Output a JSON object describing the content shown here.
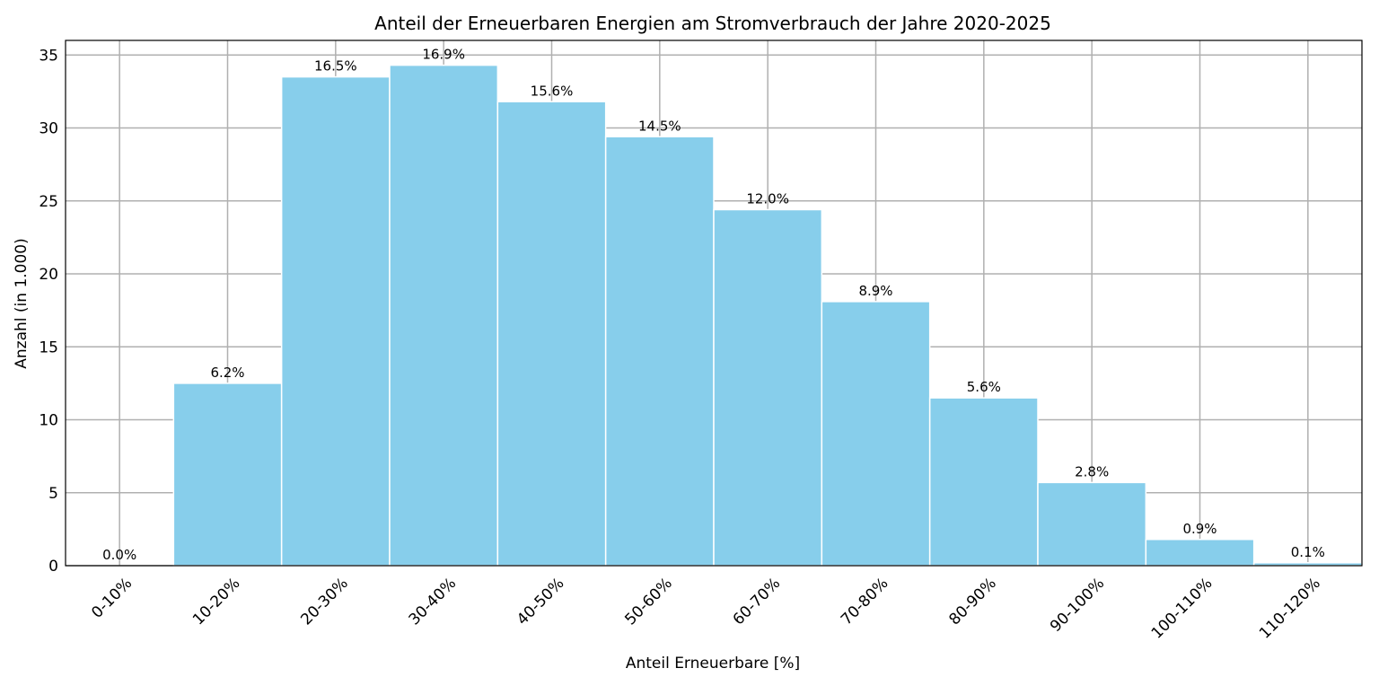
{
  "chart_data": {
    "type": "bar",
    "title": "Anteil der Erneuerbaren Energien am Stromverbrauch der Jahre 2020-2025",
    "xlabel": "Anteil Erneuerbare [%]",
    "ylabel": "Anzahl (in 1.000)",
    "categories": [
      "0-10%",
      "10-20%",
      "20-30%",
      "30-40%",
      "40-50%",
      "50-60%",
      "60-70%",
      "70-80%",
      "80-90%",
      "90-100%",
      "100-110%",
      "110-120%"
    ],
    "values": [
      0.0,
      12.5,
      33.5,
      34.3,
      31.8,
      29.4,
      24.4,
      18.1,
      11.5,
      5.7,
      1.8,
      0.2
    ],
    "data_labels": [
      "0.0%",
      "6.2%",
      "16.5%",
      "16.9%",
      "15.6%",
      "14.5%",
      "12.0%",
      "8.9%",
      "5.6%",
      "2.8%",
      "0.9%",
      "0.1%"
    ],
    "ylim": [
      0,
      36
    ],
    "yticks": [
      0,
      5,
      10,
      15,
      20,
      25,
      30,
      35
    ],
    "grid": true,
    "bar_color": "#87CEEB",
    "legend": "none"
  }
}
